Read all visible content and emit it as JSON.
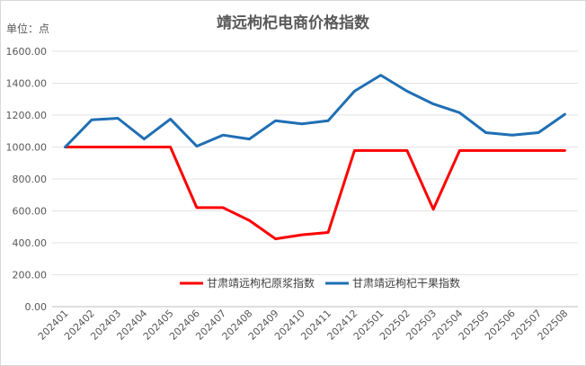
{
  "chart_data": {
    "type": "line",
    "title": "靖远枸杞电商价格指数",
    "unit_label": "单位：点",
    "categories": [
      "202401",
      "202402",
      "202403",
      "202404",
      "202405",
      "202406",
      "202407",
      "202408",
      "202409",
      "202410",
      "202411",
      "202412",
      "202501",
      "202502",
      "202503",
      "202504",
      "202505",
      "202506",
      "202507",
      "202508"
    ],
    "series": [
      {
        "name": "甘肃靖远枸杞原浆指数",
        "color": "#ff0000",
        "values": [
          1000,
          1000,
          1000,
          1000,
          1000,
          620,
          620,
          540,
          425,
          450,
          465,
          978,
          978,
          978,
          610,
          978,
          978,
          978,
          978,
          978
        ]
      },
      {
        "name": "甘肃靖远枸杞干果指数",
        "color": "#1f6fb4",
        "values": [
          1000,
          1170,
          1180,
          1050,
          1175,
          1005,
          1075,
          1050,
          1165,
          1145,
          1165,
          1350,
          1450,
          1350,
          1270,
          1215,
          1090,
          1075,
          1090,
          1205
        ]
      }
    ],
    "yticks": [
      "0.00",
      "200.00",
      "400.00",
      "600.00",
      "800.00",
      "1000.00",
      "1200.00",
      "1400.00",
      "1600.00"
    ],
    "ylim": [
      0,
      1600
    ],
    "grid": true,
    "legend": "bottom-center"
  }
}
